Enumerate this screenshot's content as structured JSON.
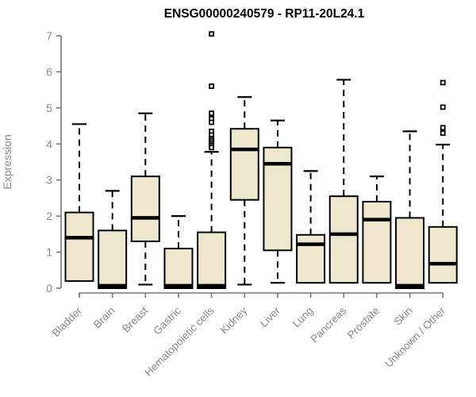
{
  "chart_data": {
    "type": "boxplot",
    "title": "ENSG00000240579 - RP11-20L24.1",
    "ylabel": "Expression",
    "xlabel": "",
    "ylim": [
      0,
      7
    ],
    "yticks": [
      0,
      1,
      2,
      3,
      4,
      5,
      6,
      7
    ],
    "grid": false,
    "legend": "none",
    "categories": [
      "Bladder",
      "Brain",
      "Breast",
      "Gastric",
      "Hematopoietic cells",
      "Kidney",
      "Liver",
      "Lung",
      "Pancreas",
      "Prostate",
      "Skin",
      "Unknown / Other"
    ],
    "series": [
      {
        "name": "Bladder",
        "whisker_low": 0.2,
        "q1": 0.2,
        "median": 1.4,
        "q3": 2.1,
        "whisker_high": 4.55,
        "outliers": []
      },
      {
        "name": "Brain",
        "whisker_low": 0.0,
        "q1": 0.0,
        "median": 0.07,
        "q3": 1.6,
        "whisker_high": 2.7,
        "outliers": []
      },
      {
        "name": "Breast",
        "whisker_low": 0.1,
        "q1": 1.3,
        "median": 1.95,
        "q3": 3.1,
        "whisker_high": 4.85,
        "outliers": []
      },
      {
        "name": "Gastric",
        "whisker_low": 0.0,
        "q1": 0.0,
        "median": 0.07,
        "q3": 1.1,
        "whisker_high": 2.0,
        "outliers": []
      },
      {
        "name": "Hematopoietic cells",
        "whisker_low": 0.0,
        "q1": 0.0,
        "median": 0.07,
        "q3": 1.55,
        "whisker_high": 3.78,
        "outliers": [
          7.05,
          5.6,
          4.85,
          4.7,
          4.6,
          4.35,
          4.25,
          4.15,
          4.1,
          4.05,
          4.0,
          3.95,
          3.9
        ]
      },
      {
        "name": "Kidney",
        "whisker_low": 0.1,
        "q1": 2.45,
        "median": 3.85,
        "q3": 4.42,
        "whisker_high": 5.3,
        "outliers": []
      },
      {
        "name": "Liver",
        "whisker_low": 0.15,
        "q1": 1.05,
        "median": 3.45,
        "q3": 3.9,
        "whisker_high": 4.65,
        "outliers": []
      },
      {
        "name": "Lung",
        "whisker_low": 0.15,
        "q1": 0.15,
        "median": 1.22,
        "q3": 1.48,
        "whisker_high": 3.25,
        "outliers": []
      },
      {
        "name": "Pancreas",
        "whisker_low": 0.15,
        "q1": 0.15,
        "median": 1.5,
        "q3": 2.55,
        "whisker_high": 5.78,
        "outliers": []
      },
      {
        "name": "Prostate",
        "whisker_low": 0.15,
        "q1": 0.15,
        "median": 1.9,
        "q3": 2.4,
        "whisker_high": 3.1,
        "outliers": []
      },
      {
        "name": "Skin",
        "whisker_low": 0.0,
        "q1": 0.0,
        "median": 0.07,
        "q3": 1.95,
        "whisker_high": 4.35,
        "outliers": []
      },
      {
        "name": "Unknown / Other",
        "whisker_low": 0.15,
        "q1": 0.15,
        "median": 0.68,
        "q3": 1.7,
        "whisker_high": 3.98,
        "outliers": [
          5.7,
          5.02,
          4.45,
          4.3
        ]
      }
    ],
    "colors": {
      "box_fill": "#EDE8CD",
      "box_stroke": "#000000",
      "median_stroke": "#000000",
      "whisker_stroke": "#000000",
      "outlier_stroke": "#000000",
      "axis_line": "#777777",
      "tick_text": "#8a8a8a",
      "title_text": "#000000",
      "background": "#FFFFFF"
    }
  }
}
